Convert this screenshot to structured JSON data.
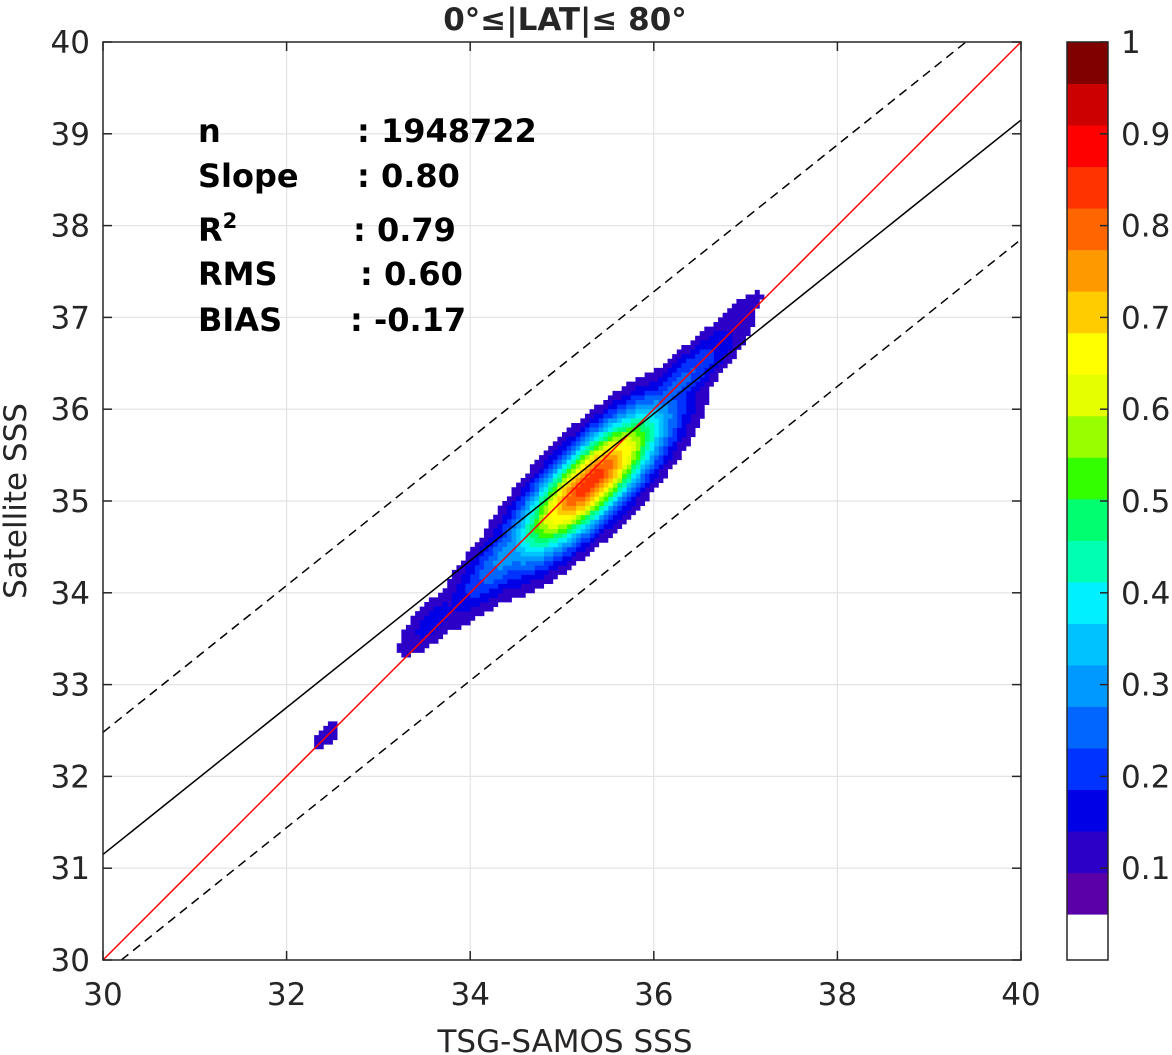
{
  "chart_data": {
    "type": "contour",
    "title": "0°≤|LAT|≤ 80°",
    "xlabel": "TSG-SAMOS SSS",
    "ylabel": "Satellite SSS",
    "xlim": [
      30,
      40
    ],
    "ylim": [
      30,
      40
    ],
    "xticks": [
      30,
      32,
      34,
      36,
      38,
      40
    ],
    "yticks": [
      30,
      31,
      32,
      33,
      34,
      35,
      36,
      37,
      38,
      39,
      40
    ],
    "grid": true,
    "stats": [
      {
        "label": "n",
        "value": ": 1948722"
      },
      {
        "label": "Slope",
        "value": ": 0.80"
      },
      {
        "label": "R",
        "sup": "2",
        "value": ": 0.79"
      },
      {
        "label": "RMS",
        "value": ": 0.60"
      },
      {
        "label": "BIAS",
        "value": ": -0.17"
      }
    ],
    "lines": [
      {
        "name": "one-to-one",
        "color": "#ff0000",
        "style": "solid",
        "points": [
          [
            30,
            30
          ],
          [
            40,
            40
          ]
        ]
      },
      {
        "name": "regression",
        "color": "#000000",
        "style": "solid",
        "points": [
          [
            30,
            31.15
          ],
          [
            40,
            39.15
          ]
        ]
      },
      {
        "name": "upper-bound",
        "color": "#000000",
        "style": "dashed",
        "points": [
          [
            30,
            32.48
          ],
          [
            39.4,
            40
          ]
        ]
      },
      {
        "name": "lower-bound",
        "color": "#000000",
        "style": "dashed",
        "points": [
          [
            30.2,
            30
          ],
          [
            40,
            37.85
          ]
        ]
      }
    ],
    "density": {
      "center": [
        35.25,
        35.25
      ],
      "levels": [
        0.05,
        0.15,
        0.25,
        0.35,
        0.45,
        0.55,
        0.65,
        0.75,
        0.85,
        0.95
      ],
      "blobs": [
        {
          "cx": 35.3,
          "cy": 35.2,
          "sx": 1.05,
          "sy": 0.34,
          "amp": 0.88
        },
        {
          "cx": 34.6,
          "cy": 34.6,
          "sx": 1.05,
          "sy": 0.26,
          "amp": 0.3
        },
        {
          "cx": 36.2,
          "cy": 36.2,
          "sx": 1.05,
          "sy": 0.22,
          "amp": 0.22
        },
        {
          "cx": 36.85,
          "cy": 36.95,
          "sx": 0.55,
          "sy": 0.16,
          "amp": 0.1
        },
        {
          "cx": 33.6,
          "cy": 33.7,
          "sx": 0.55,
          "sy": 0.2,
          "amp": 0.12
        },
        {
          "cx": 32.43,
          "cy": 32.45,
          "sx": 0.22,
          "sy": 0.12,
          "amp": 0.09
        }
      ]
    },
    "colorbar": {
      "ticks": [
        0.1,
        0.2,
        0.3,
        0.4,
        0.5,
        0.6,
        0.7,
        0.8,
        0.9,
        1
      ],
      "tick_labels": [
        "0.1",
        "0.2",
        "0.3",
        "0.4",
        "0.5",
        "0.6",
        "0.7",
        "0.8",
        "0.9",
        "1"
      ],
      "bins": [
        0,
        0.05,
        0.1,
        0.15,
        0.2,
        0.25,
        0.3,
        0.35,
        0.4,
        0.45,
        0.5,
        0.55,
        0.6,
        0.65,
        0.7,
        0.75,
        0.8,
        0.85,
        0.9,
        0.95,
        1.0
      ],
      "colors": [
        "#ffffff",
        "#5a00a8",
        "#2d00c8",
        "#0000e6",
        "#0033ff",
        "#0066ff",
        "#0099ff",
        "#00c2ff",
        "#00f0ff",
        "#00ffb0",
        "#00ff70",
        "#33ff00",
        "#99ff00",
        "#e6ff00",
        "#ffff00",
        "#ffcc00",
        "#ff9900",
        "#ff6600",
        "#ff3300",
        "#ff0000",
        "#cc0000",
        "#800000"
      ]
    }
  }
}
